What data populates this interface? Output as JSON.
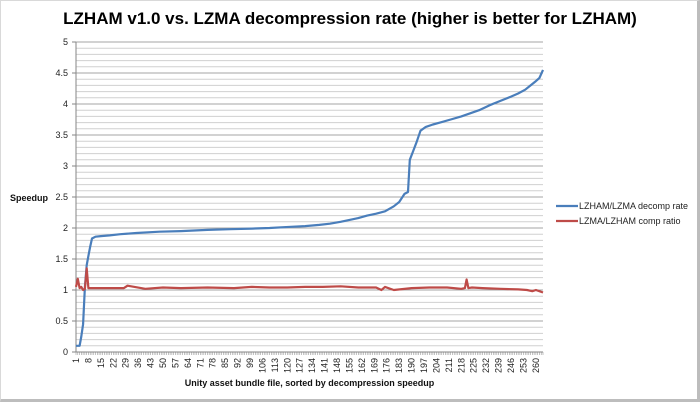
{
  "chart_data": {
    "type": "line",
    "title": "LZHAM v1.0 vs. LZMA decompression rate (higher is better for LZHAM)",
    "xlabel": "Unity asset bundle file, sorted by decompression speedup",
    "ylabel": "Speedup",
    "ylim": [
      0,
      5
    ],
    "xlim": [
      1,
      264
    ],
    "y_ticks": [
      "0",
      "0.5",
      "1",
      "1.5",
      "2",
      "2.5",
      "3",
      "3.5",
      "4",
      "4.5",
      "5"
    ],
    "y_tick_values": [
      0,
      0.5,
      1,
      1.5,
      2,
      2.5,
      3,
      3.5,
      4,
      4.5,
      5
    ],
    "y_minor_step": 0.1,
    "x_ticks": [
      "1",
      "8",
      "15",
      "22",
      "29",
      "36",
      "43",
      "50",
      "57",
      "64",
      "71",
      "78",
      "85",
      "92",
      "99",
      "106",
      "113",
      "120",
      "127",
      "134",
      "141",
      "148",
      "155",
      "162",
      "169",
      "176",
      "183",
      "190",
      "197",
      "204",
      "211",
      "218",
      "225",
      "232",
      "239",
      "246",
      "253",
      "260"
    ],
    "grid": true,
    "legend_position": "right",
    "series": [
      {
        "name": "LZHAM/LZMA decomp rate",
        "color": "#4a7ebb",
        "x": [
          1,
          3,
          4,
          5,
          6,
          7,
          8,
          9,
          10,
          12,
          15,
          20,
          26,
          35,
          48,
          60,
          75,
          88,
          100,
          110,
          122,
          130,
          138,
          144,
          150,
          155,
          160,
          165,
          170,
          175,
          180,
          183,
          186,
          188,
          189,
          191,
          193,
          195,
          198,
          202,
          206,
          212,
          218,
          223,
          228,
          234,
          240,
          246,
          250,
          254,
          257,
          260,
          262,
          264
        ],
        "values": [
          0.1,
          0.1,
          0.25,
          0.45,
          1.05,
          1.4,
          1.55,
          1.7,
          1.83,
          1.86,
          1.87,
          1.88,
          1.9,
          1.92,
          1.94,
          1.95,
          1.97,
          1.98,
          1.99,
          2.0,
          2.02,
          2.03,
          2.05,
          2.07,
          2.1,
          2.13,
          2.16,
          2.2,
          2.23,
          2.27,
          2.35,
          2.42,
          2.55,
          2.58,
          3.1,
          3.25,
          3.4,
          3.57,
          3.63,
          3.67,
          3.7,
          3.75,
          3.8,
          3.85,
          3.9,
          3.98,
          4.05,
          4.12,
          4.17,
          4.23,
          4.3,
          4.37,
          4.42,
          4.55
        ]
      },
      {
        "name": "LZMA/LZHAM comp ratio",
        "color": "#be4b48",
        "x": [
          1,
          2,
          3,
          4,
          5,
          6,
          7,
          8,
          10,
          20,
          28,
          30,
          40,
          50,
          60,
          75,
          90,
          100,
          110,
          120,
          130,
          140,
          150,
          160,
          170,
          173,
          175,
          180,
          190,
          200,
          210,
          218,
          220,
          221,
          222,
          224,
          230,
          240,
          250,
          255,
          258,
          260,
          262,
          264
        ],
        "values": [
          1.05,
          1.18,
          1.03,
          1.05,
          1.0,
          1.02,
          1.35,
          1.03,
          1.03,
          1.03,
          1.03,
          1.07,
          1.02,
          1.04,
          1.03,
          1.04,
          1.03,
          1.05,
          1.04,
          1.04,
          1.05,
          1.05,
          1.06,
          1.04,
          1.04,
          1.0,
          1.05,
          1.0,
          1.03,
          1.04,
          1.04,
          1.02,
          1.03,
          1.17,
          1.03,
          1.04,
          1.03,
          1.02,
          1.01,
          1.0,
          0.98,
          1.0,
          0.98,
          0.96
        ]
      }
    ]
  }
}
